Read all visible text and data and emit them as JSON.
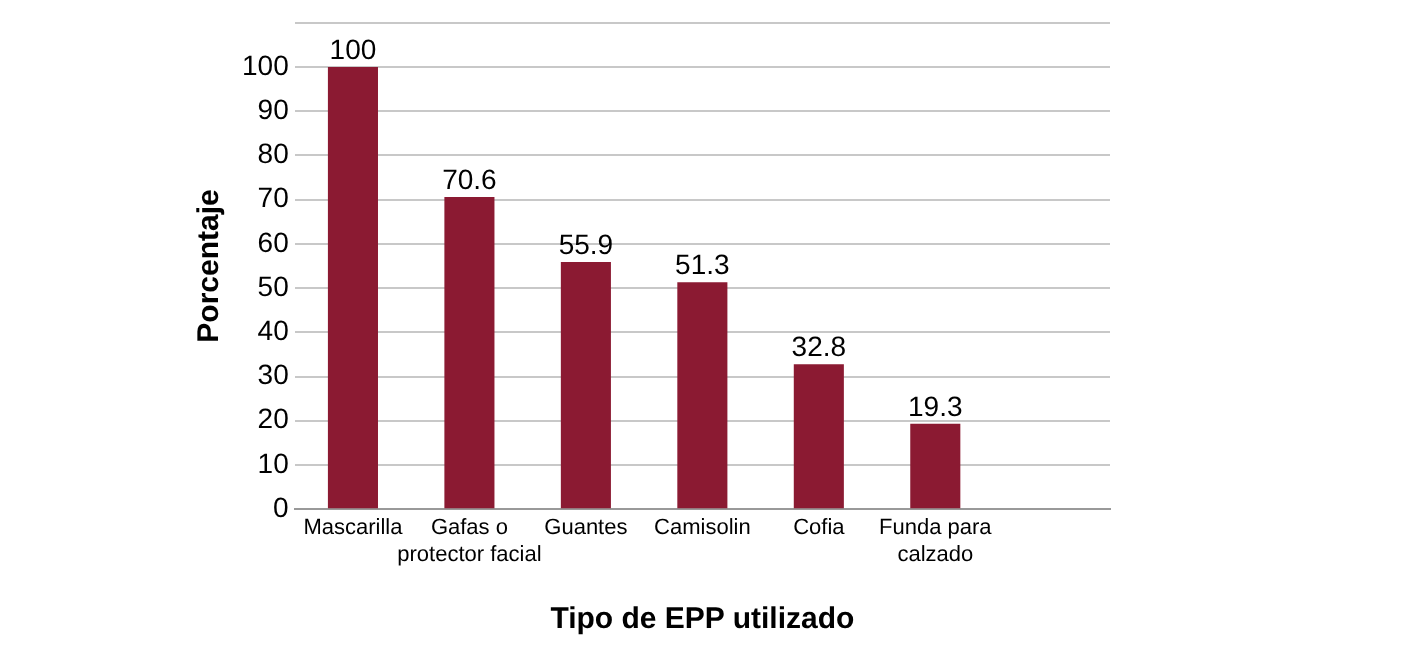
{
  "chart_data": {
    "type": "bar",
    "xlabel": "Tipo de EPP utilizado",
    "ylabel": "Porcentaje",
    "categories": [
      "Mascarilla",
      "Gafas o protector facial",
      "Guantes",
      "Camisolin",
      "Cofia",
      "Funda para calzado",
      null
    ],
    "values": [
      100,
      70.6,
      55.9,
      51.3,
      32.8,
      19.3,
      null
    ],
    "color": "#8b1a32",
    "ylim": [
      0,
      110
    ],
    "yticks": [
      0,
      10,
      20,
      30,
      40,
      50,
      60,
      70,
      80,
      90,
      100,
      {
        "value": 110,
        "label": null
      }
    ],
    "grid": "y",
    "legend": false,
    "data_labels": true
  }
}
